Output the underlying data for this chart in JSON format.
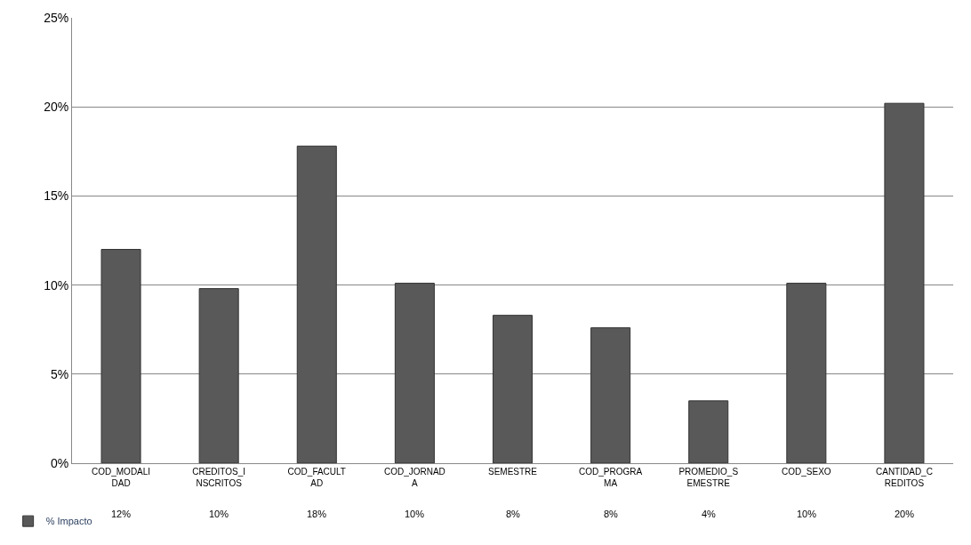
{
  "chart_data": {
    "type": "bar",
    "categories": [
      "COD_MODALIDAD",
      "CREDITOS_INSCRITOS",
      "COD_FACULTAD",
      "COD_JORNADA",
      "SEMESTRE",
      "COD_PROGRAMA",
      "PROMEDIO_SEMESTRE",
      "COD_SEXO",
      "CANTIDAD_CREDITOS"
    ],
    "series": [
      {
        "name": "% Impacto",
        "color": "#595959",
        "values": [
          12.0,
          9.8,
          17.8,
          10.1,
          8.3,
          7.6,
          3.5,
          10.1,
          20.2
        ],
        "value_labels": [
          "12%",
          "10%",
          "18%",
          "10%",
          "8%",
          "8%",
          "4%",
          "10%",
          "20%"
        ]
      }
    ],
    "ylim": [
      0,
      25
    ],
    "yticks": [
      {
        "value": 0,
        "label": "0%"
      },
      {
        "value": 5,
        "label": "5%"
      },
      {
        "value": 10,
        "label": "10%"
      },
      {
        "value": 15,
        "label": "15%"
      },
      {
        "value": 20,
        "label": "20%"
      },
      {
        "value": 25,
        "label": "25%"
      }
    ],
    "grid": "y",
    "legend": "bottom left"
  }
}
